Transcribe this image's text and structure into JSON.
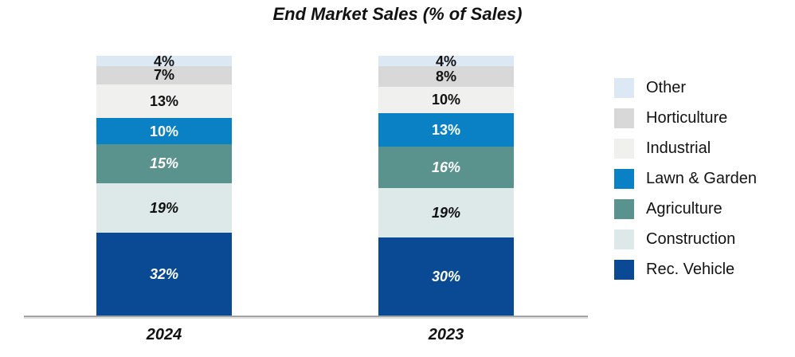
{
  "title": "End Market Sales (% of Sales)",
  "chart_data": {
    "type": "bar",
    "stacked": true,
    "orientation": "vertical",
    "title": "End Market Sales (% of Sales)",
    "categories": [
      "2024",
      "2023"
    ],
    "series": [
      {
        "name": "Other",
        "color": "#dce9f5",
        "label_color": "#111111",
        "label_italic": false,
        "values": [
          4,
          4
        ]
      },
      {
        "name": "Horticulture",
        "color": "#d8d8d8",
        "label_color": "#111111",
        "label_italic": false,
        "values": [
          7,
          8
        ]
      },
      {
        "name": "Industrial",
        "color": "#f0f0ef",
        "label_color": "#111111",
        "label_italic": false,
        "values": [
          13,
          10
        ]
      },
      {
        "name": "Lawn & Garden",
        "color": "#0981c4",
        "label_color": "#ffffff",
        "label_italic": false,
        "values": [
          10,
          13
        ]
      },
      {
        "name": "Agriculture",
        "color": "#5a938e",
        "label_color": "#ffffff",
        "label_italic": true,
        "values": [
          15,
          16
        ]
      },
      {
        "name": "Construction",
        "color": "#dde9e9",
        "label_color": "#111111",
        "label_italic": true,
        "values": [
          19,
          19
        ]
      },
      {
        "name": "Rec. Vehicle",
        "color": "#0a4a94",
        "label_color": "#ffffff",
        "label_italic": true,
        "values": [
          32,
          30
        ]
      }
    ],
    "value_suffix": "%",
    "ylim": [
      0,
      100
    ],
    "grid": false,
    "legend_position": "right",
    "axis_line_color": "#a3a3a3",
    "xlabel": "",
    "ylabel": ""
  }
}
